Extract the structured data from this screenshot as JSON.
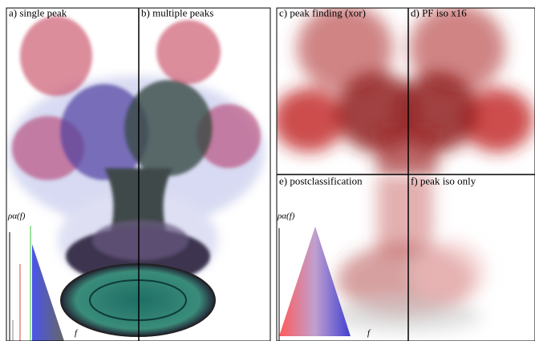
{
  "panels": [
    {
      "label": "a) single peak"
    },
    {
      "label": "b) multiple peaks"
    },
    {
      "label": "c) peak finding (xor)"
    },
    {
      "label": "d) PF iso x16"
    },
    {
      "label": "e) postclassification"
    },
    {
      "label": "f) peak iso only"
    }
  ],
  "transfer_functions": [
    {
      "y_label": "ρα(f)",
      "x_label": "f"
    },
    {
      "y_label": "ρα(f)",
      "x_label": "f"
    }
  ]
}
